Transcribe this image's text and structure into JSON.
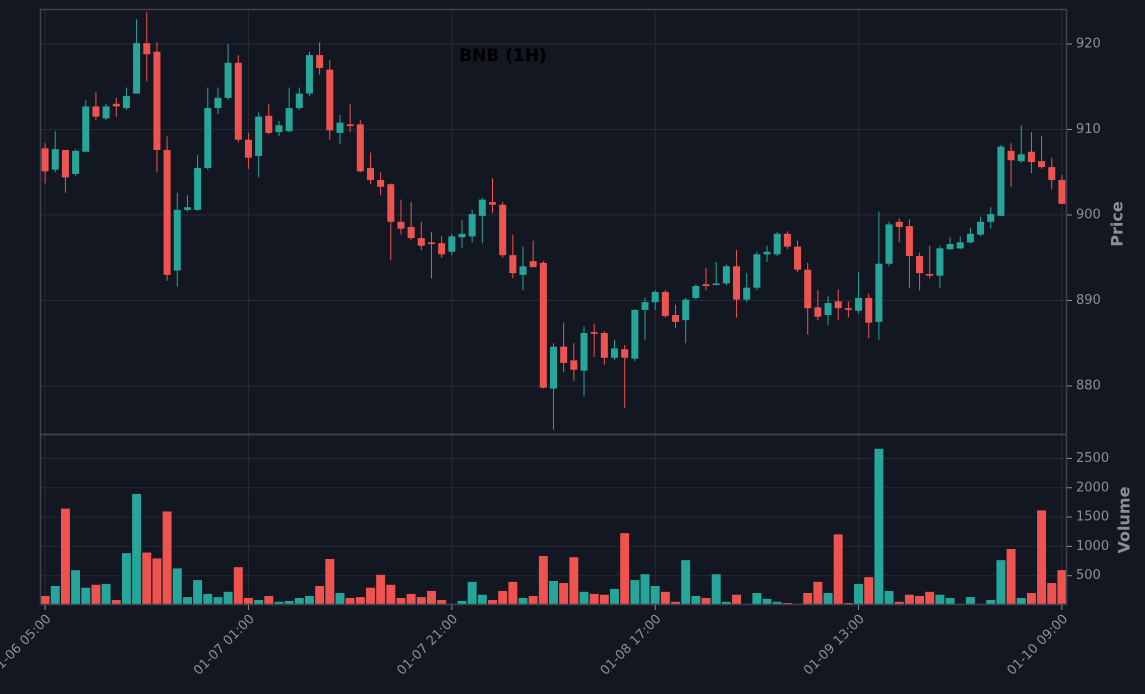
{
  "chart_data": {
    "type": "candlestick",
    "title": "BNB (1H)",
    "ylabel": "Price",
    "vlabel": "Volume",
    "up_color": "#26a69a",
    "down_color": "#ef5350",
    "grid": true,
    "categories": [
      "01-06 05:00",
      null,
      null,
      null,
      null,
      null,
      null,
      null,
      null,
      null,
      null,
      null,
      null,
      null,
      null,
      null,
      null,
      null,
      null,
      null,
      "01-07 01:00",
      null,
      null,
      null,
      null,
      null,
      null,
      null,
      null,
      null,
      null,
      null,
      null,
      null,
      null,
      null,
      null,
      null,
      null,
      null,
      "01-07 21:00",
      null,
      null,
      null,
      null,
      null,
      null,
      null,
      null,
      null,
      null,
      null,
      null,
      null,
      null,
      null,
      null,
      null,
      null,
      null,
      "01-08 17:00",
      null,
      null,
      null,
      null,
      null,
      null,
      null,
      null,
      null,
      null,
      null,
      null,
      null,
      null,
      null,
      null,
      null,
      null,
      null,
      "01-09 13:00",
      null,
      null,
      null,
      null,
      null,
      null,
      null,
      null,
      null,
      null,
      null,
      null,
      null,
      null,
      null,
      null,
      null,
      null,
      null,
      "01-10 09:00"
    ],
    "open": [
      907.8,
      905.3,
      907.6,
      904.8,
      907.4,
      912.7,
      911.3,
      913.0,
      912.5,
      914.2,
      920.1,
      919.1,
      907.6,
      893.5,
      900.6,
      900.6,
      905.5,
      912.5,
      913.7,
      917.8,
      908.8,
      906.9,
      911.6,
      909.7,
      909.8,
      912.5,
      914.2,
      918.7,
      917.0,
      909.6,
      910.6,
      910.6,
      905.5,
      904.1,
      903.6,
      899.2,
      898.6,
      897.3,
      896.8,
      896.7,
      895.7,
      897.4,
      897.5,
      899.9,
      901.5,
      901.2,
      895.3,
      893.0,
      894.6,
      894.4,
      879.7,
      884.6,
      883.0,
      881.8,
      886.3,
      886.2,
      883.3,
      884.3,
      883.2,
      888.9,
      889.8,
      891.0,
      888.3,
      887.7,
      890.3,
      891.9,
      891.8,
      892.0,
      894.0,
      890.1,
      891.5,
      895.4,
      895.4,
      897.8,
      896.3,
      893.6,
      889.2,
      888.3,
      889.9,
      889.1,
      888.8,
      890.3,
      887.5,
      894.3,
      899.2,
      898.7,
      895.2,
      893.1,
      892.9,
      896.0,
      896.1,
      896.8,
      897.7,
      899.2,
      899.9,
      907.5,
      906.3,
      907.4,
      906.3,
      905.6,
      904.1
    ],
    "high": [
      908.4,
      909.8,
      907.6,
      907.7,
      913.4,
      914.4,
      913.0,
      913.7,
      914.9,
      922.9,
      923.7,
      920.2,
      909.2,
      902.6,
      902.3,
      907.0,
      914.9,
      914.9,
      920.0,
      918.7,
      909.6,
      912.0,
      913.0,
      911.0,
      914.9,
      914.9,
      919.1,
      920.2,
      918.1,
      911.7,
      913.0,
      911.1,
      907.3,
      905.0,
      903.7,
      901.8,
      901.5,
      899.2,
      898.0,
      897.5,
      897.8,
      899.4,
      900.6,
      902.0,
      904.3,
      901.5,
      897.7,
      896.3,
      897.0,
      894.6,
      885.0,
      887.4,
      885.0,
      887.0,
      887.3,
      886.4,
      885.4,
      884.8,
      889.0,
      890.3,
      891.2,
      891.2,
      889.5,
      890.3,
      891.9,
      893.8,
      894.5,
      894.2,
      895.9,
      893.2,
      895.7,
      896.4,
      898.0,
      898.1,
      897.0,
      894.4,
      891.2,
      890.5,
      891.3,
      889.9,
      893.3,
      890.8,
      900.4,
      899.2,
      899.6,
      899.5,
      895.6,
      896.4,
      896.4,
      897.4,
      897.5,
      898.5,
      899.8,
      900.9,
      908.2,
      908.4,
      910.5,
      909.7,
      909.2,
      906.7,
      904.7
    ],
    "low": [
      903.7,
      905.0,
      902.6,
      904.6,
      907.4,
      911.1,
      911.1,
      911.5,
      912.3,
      914.2,
      915.6,
      905.0,
      892.3,
      891.6,
      900.4,
      900.5,
      905.3,
      911.8,
      913.5,
      908.5,
      905.4,
      904.4,
      909.4,
      909.2,
      909.7,
      912.3,
      913.9,
      916.4,
      908.8,
      908.3,
      909.7,
      905.0,
      903.6,
      902.3,
      894.7,
      897.7,
      897.1,
      895.9,
      892.6,
      895.0,
      895.3,
      896.1,
      896.8,
      896.7,
      900.2,
      895.0,
      892.6,
      891.2,
      893.9,
      879.7,
      874.9,
      881.6,
      880.6,
      878.8,
      883.4,
      882.5,
      883.0,
      877.4,
      882.9,
      885.4,
      888.9,
      888.0,
      886.8,
      885.0,
      890.1,
      891.2,
      891.8,
      891.8,
      888.0,
      889.8,
      891.2,
      894.5,
      895.2,
      896.0,
      893.3,
      886.0,
      887.7,
      887.1,
      887.7,
      888.0,
      888.5,
      885.6,
      885.4,
      894.0,
      896.8,
      891.5,
      891.2,
      892.6,
      891.5,
      895.9,
      896.0,
      896.7,
      897.5,
      898.4,
      899.9,
      903.3,
      906.1,
      904.9,
      905.4,
      903.0,
      901.3
    ],
    "close": [
      905.1,
      907.7,
      904.4,
      907.5,
      912.7,
      911.5,
      912.7,
      912.7,
      913.9,
      920.1,
      918.8,
      907.6,
      893.0,
      900.6,
      900.9,
      905.5,
      912.5,
      913.7,
      917.8,
      908.8,
      906.7,
      911.5,
      909.6,
      910.5,
      912.5,
      914.2,
      918.7,
      917.2,
      909.9,
      910.8,
      910.4,
      905.1,
      904.1,
      903.3,
      899.2,
      898.4,
      897.3,
      896.4,
      896.6,
      895.4,
      897.5,
      897.8,
      900.1,
      901.8,
      901.2,
      895.3,
      893.2,
      894.0,
      893.9,
      879.8,
      884.6,
      882.7,
      881.9,
      886.2,
      886.1,
      883.3,
      884.4,
      883.3,
      888.9,
      889.8,
      891.0,
      888.2,
      887.5,
      890.1,
      891.7,
      891.7,
      892.0,
      894.0,
      890.1,
      891.5,
      895.4,
      895.7,
      897.8,
      896.3,
      893.6,
      889.1,
      888.1,
      889.7,
      889.1,
      888.9,
      890.3,
      887.4,
      894.3,
      898.9,
      898.6,
      895.2,
      893.2,
      892.9,
      896.1,
      896.6,
      896.8,
      897.8,
      899.2,
      900.1,
      908.0,
      906.4,
      907.1,
      906.2,
      905.6,
      904.1,
      901.3
    ],
    "volume": [
      160,
      330,
      1650,
      600,
      300,
      350,
      365,
      90,
      890,
      1900,
      900,
      800,
      1600,
      630,
      140,
      430,
      195,
      140,
      230,
      650,
      125,
      90,
      160,
      60,
      75,
      125,
      160,
      330,
      790,
      210,
      125,
      140,
      300,
      520,
      350,
      125,
      195,
      140,
      245,
      90,
      25,
      75,
      400,
      180,
      90,
      245,
      400,
      125,
      160,
      840,
      415,
      380,
      820,
      230,
      195,
      180,
      280,
      1230,
      430,
      530,
      330,
      230,
      60,
      770,
      160,
      125,
      530,
      60,
      180,
      25,
      210,
      110,
      60,
      40,
      25,
      210,
      400,
      210,
      1210,
      40,
      365,
      480,
      2670,
      245,
      60,
      180,
      160,
      230,
      180,
      125,
      25,
      140,
      25,
      90,
      770,
      960,
      125,
      210,
      1620,
      380,
      600
    ],
    "ylim": [
      874.27,
      924.09
    ],
    "yticks": [
      880,
      890,
      900,
      910,
      920
    ],
    "vlim": [
      0,
      2900
    ],
    "vticks": [
      500,
      1000,
      1500,
      2000,
      2500
    ]
  }
}
